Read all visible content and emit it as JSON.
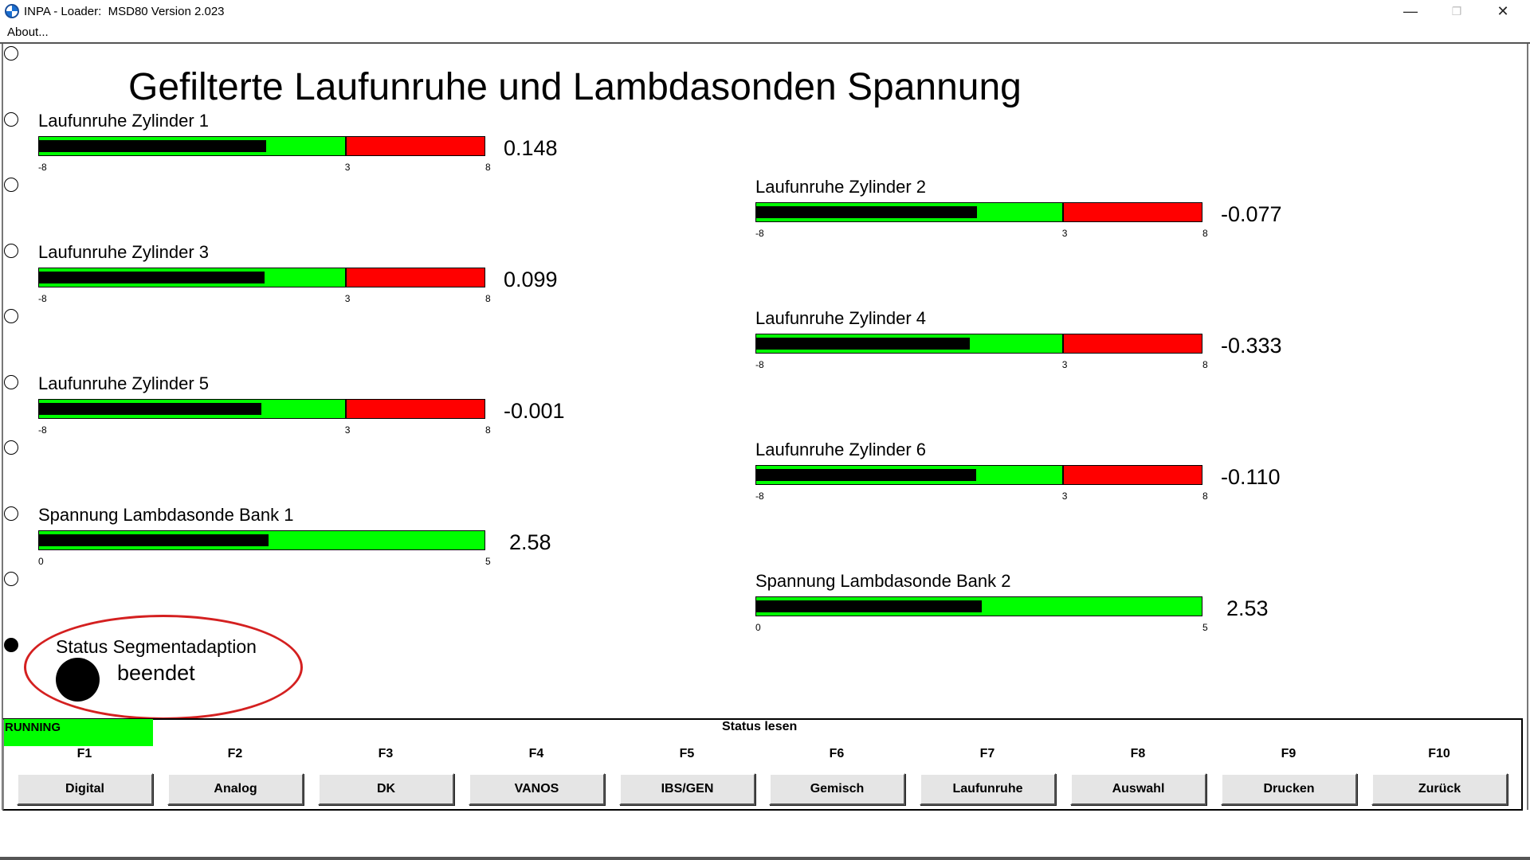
{
  "window": {
    "title": "INPA - Loader:  MSD80 Version 2.023",
    "minimize": "—",
    "restore": "❐",
    "close": "✕"
  },
  "menu": {
    "about": "About..."
  },
  "main_title": "Gefilterte Laufunruhe und Lambdasonden Spannung",
  "gauges": [
    {
      "label": "Laufunruhe Zylinder 1",
      "value": "0.148",
      "min": "-8",
      "mid": "3",
      "max": "8",
      "value_num": 0.148,
      "range": [
        -8,
        8
      ],
      "threshold": 3
    },
    {
      "label": "Laufunruhe Zylinder 2",
      "value": "-0.077",
      "min": "-8",
      "mid": "3",
      "max": "8",
      "value_num": -0.077,
      "range": [
        -8,
        8
      ],
      "threshold": 3
    },
    {
      "label": "Laufunruhe Zylinder 3",
      "value": "0.099",
      "min": "-8",
      "mid": "3",
      "max": "8",
      "value_num": 0.099,
      "range": [
        -8,
        8
      ],
      "threshold": 3
    },
    {
      "label": "Laufunruhe Zylinder 4",
      "value": "-0.333",
      "min": "-8",
      "mid": "3",
      "max": "8",
      "value_num": -0.333,
      "range": [
        -8,
        8
      ],
      "threshold": 3
    },
    {
      "label": "Laufunruhe Zylinder 5",
      "value": "-0.001",
      "min": "-8",
      "mid": "3",
      "max": "8",
      "value_num": -0.001,
      "range": [
        -8,
        8
      ],
      "threshold": 3
    },
    {
      "label": "Laufunruhe Zylinder 6",
      "value": "-0.110",
      "min": "-8",
      "mid": "3",
      "max": "8",
      "value_num": -0.11,
      "range": [
        -8,
        8
      ],
      "threshold": 3
    },
    {
      "label": "Spannung Lambdasonde Bank 1",
      "value": "2.58",
      "min": "0",
      "max": "5",
      "value_num": 2.58,
      "range": [
        0,
        5
      ]
    },
    {
      "label": "Spannung Lambdasonde Bank 2",
      "value": "2.53",
      "min": "0",
      "max": "5",
      "value_num": 2.53,
      "range": [
        0,
        5
      ]
    }
  ],
  "radios": {
    "selected_index": 9,
    "count": 10
  },
  "status_segment": {
    "title": "Status Segmentadaption",
    "state": "beendet"
  },
  "statusbar": {
    "running": "RUNNING",
    "center": "Status lesen"
  },
  "fkeys": [
    {
      "key": "F1",
      "label": "Digital"
    },
    {
      "key": "F2",
      "label": "Analog"
    },
    {
      "key": "F3",
      "label": "DK"
    },
    {
      "key": "F4",
      "label": "VANOS"
    },
    {
      "key": "F5",
      "label": "IBS/GEN"
    },
    {
      "key": "F6",
      "label": "Gemisch"
    },
    {
      "key": "F7",
      "label": "Laufunruhe"
    },
    {
      "key": "F8",
      "label": "Auswahl"
    },
    {
      "key": "F9",
      "label": "Drucken"
    },
    {
      "key": "F10",
      "label": "Zurück"
    }
  ],
  "colors": {
    "ok": "#00ff00",
    "bad": "#ff0000",
    "fill": "#000000",
    "annotation": "#d42020"
  }
}
